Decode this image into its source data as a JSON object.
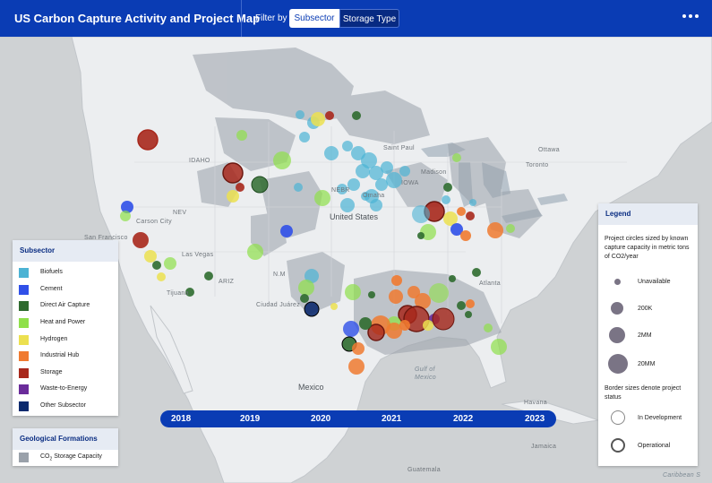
{
  "header": {
    "title": "US Carbon Capture Activity and Project Map",
    "filter_label": "Filter by",
    "filter_options": [
      "Subsector",
      "Storage Type"
    ],
    "selected_filter": "Subsector"
  },
  "subsector_legend": {
    "title": "Subsector",
    "items": [
      {
        "label": "Biofuels",
        "color": "#4cb3d4"
      },
      {
        "label": "Cement",
        "color": "#3050e8"
      },
      {
        "label": "Direct Air Capture",
        "color": "#2f6b2f"
      },
      {
        "label": "Heat and Power",
        "color": "#8fe04a"
      },
      {
        "label": "Hydrogen",
        "color": "#ece050"
      },
      {
        "label": "Industrial Hub",
        "color": "#f07a30"
      },
      {
        "label": "Storage",
        "color": "#a8281c"
      },
      {
        "label": "Waste-to-Energy",
        "color": "#6a2c9a"
      },
      {
        "label": "Other Subsector",
        "color": "#0c2a6e"
      }
    ]
  },
  "geological_legend": {
    "title": "Geological Formations",
    "item_prefix": "CO",
    "item_sub": "2",
    "item_suffix": " Storage Capacity",
    "color": "#9aa1aa"
  },
  "size_legend": {
    "title": "Legend",
    "size_note": "Project circles sized by known capture capacity in metric tons of CO2/year",
    "sizes": [
      {
        "label": "Unavailable",
        "tons": null
      },
      {
        "label": "200K",
        "tons": 200000
      },
      {
        "label": "2MM",
        "tons": 2000000
      },
      {
        "label": "20MM",
        "tons": 20000000
      }
    ],
    "border_note": "Border sizes denote project status",
    "statuses": [
      "In Development",
      "Operational"
    ]
  },
  "timeline": {
    "years": [
      "2018",
      "2019",
      "2020",
      "2021",
      "2022",
      "2023"
    ]
  },
  "map_labels": {
    "country_us": "United States",
    "country_mexico": "Mexico",
    "gulf": "Gulf of",
    "gulf2": "Mexico",
    "sea": "Caribbean S",
    "states": [
      "IDAHO",
      "NEV",
      "ARIZ",
      "N.M",
      "NEBR",
      "IOWA"
    ],
    "cities": [
      "Ottawa",
      "Toronto",
      "Saint Paul",
      "Madison",
      "Omaha",
      "Carson City",
      "San Francisco",
      "Las Vegas",
      "Tijuana",
      "Ciudad Juárez",
      "Atlanta",
      "Havana",
      "Jamaica",
      "Guatemala"
    ]
  }
}
